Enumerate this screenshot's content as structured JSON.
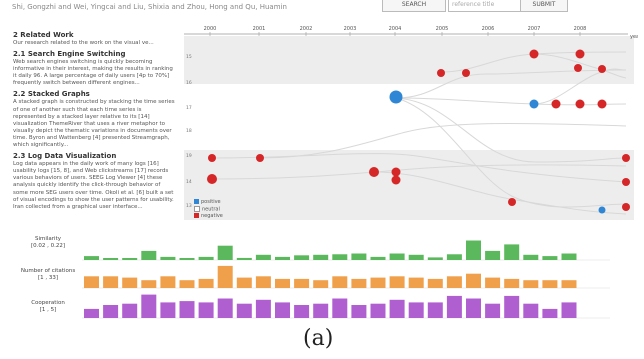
{
  "header": {
    "authors": "Shi, Gongzhi and Wei, Yingcai and Liu, Shixia and Zhou, Hong and Qu, Huamin",
    "search_button": "SEARCH",
    "search_placeholder": "reference title",
    "go_button": "SUBMIT"
  },
  "left_panel": {
    "sections": [
      {
        "title": "2 Related Work",
        "text": "Our research related to the work on the visual ve..."
      },
      {
        "title": "2.1 Search Engine Switching",
        "text": "Web search engines switching is quickly becoming informative in their interest, making the results in ranking it daily 96. A large percentage of daily users [4p to 70%] frequently switch between different engines..."
      },
      {
        "title": "2.2 Stacked Graphs",
        "text": "A stacked graph is constructed by stacking the time series of one of another such that each time series is represented by a stacked layer relative to its [14] visualization ThemeRiver that uses a river metaphor to visually depict the thematic variations in documents over time. Byron and Wattenberg [4] presented Streamgraph, which significantly..."
      },
      {
        "title": "2.3 Log Data Visualization",
        "text": "Log data appears in the daily work of many logs [16] usability logs [15, 8], and Web clickstreams [17] records various behaviors of users. SEEG Log Viewer [4] these analysis quickly identify the click-through behavior of some more SEG users over time. Okoli et al. [6] built a set of visual encodings to show the user patterns for usability. Iran collected from a graphical user interface..."
      }
    ]
  },
  "timeline": {
    "years": [
      "2000",
      "2001",
      "2002",
      "2003",
      "2004",
      "2005",
      "2006",
      "2007",
      "2008"
    ],
    "year_unit": "year",
    "row_labels": [
      "15",
      "16",
      "17",
      "18",
      "19",
      "14",
      "13",
      "12",
      "11"
    ]
  },
  "legend": {
    "items": [
      {
        "label": "positive",
        "color": "#2f86d4"
      },
      {
        "label": "neutral",
        "color": "#ffffff"
      },
      {
        "label": "negative",
        "color": "#d62728"
      }
    ]
  },
  "bar_rows": [
    {
      "label_line1": "Similarity",
      "label_line2": "[0.02 , 0.22]",
      "color": "#5cb85c",
      "values": [
        0.15,
        0.05,
        0.02,
        0.35,
        0.12,
        0.05,
        0.12,
        0.55,
        0.08,
        0.2,
        0.12,
        0.18,
        0.2,
        0.22,
        0.25,
        0.12,
        0.25,
        0.2,
        0.1,
        0.22,
        0.75,
        0.35,
        0.6,
        0.2,
        0.15,
        0.25
      ]
    },
    {
      "label_line1": "Number of citations",
      "label_line2": "[1 , 33]",
      "color": "#f0a04b",
      "values": [
        0.45,
        0.45,
        0.4,
        0.3,
        0.45,
        0.3,
        0.35,
        0.85,
        0.4,
        0.45,
        0.35,
        0.35,
        0.3,
        0.45,
        0.35,
        0.4,
        0.45,
        0.4,
        0.35,
        0.45,
        0.55,
        0.4,
        0.35,
        0.3,
        0.3,
        0.3
      ]
    },
    {
      "label_line1": "Cooperation",
      "label_line2": "[1 , 5]",
      "color": "#b05fd1",
      "values": [
        0.35,
        0.5,
        0.55,
        0.9,
        0.6,
        0.65,
        0.6,
        0.75,
        0.55,
        0.7,
        0.6,
        0.5,
        0.55,
        0.75,
        0.5,
        0.55,
        0.7,
        0.6,
        0.6,
        0.85,
        0.75,
        0.55,
        0.85,
        0.55,
        0.35,
        0.6
      ]
    }
  ],
  "caption": "(a)"
}
